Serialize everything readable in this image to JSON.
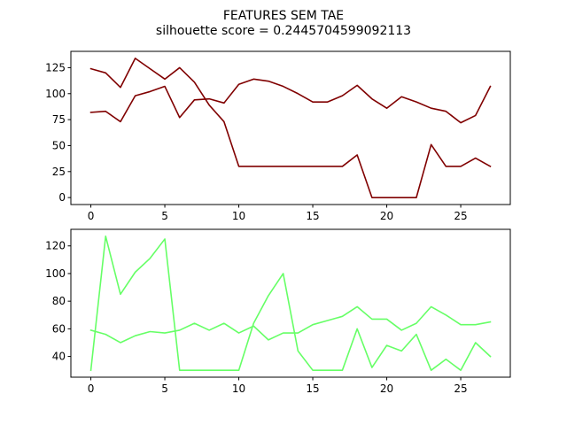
{
  "figure": {
    "title_line1": "FEATURES SEM TAE",
    "title_line2": "silhouette score = 0.2445704599092113"
  },
  "chart_data": [
    {
      "type": "line",
      "color": "#800000",
      "xlim": [
        -1.35,
        28.35
      ],
      "ylim": [
        -6.7,
        140.7
      ],
      "x_ticks": [
        0,
        5,
        10,
        15,
        20,
        25
      ],
      "y_ticks": [
        0,
        25,
        50,
        75,
        100,
        125
      ],
      "grid": false,
      "x": [
        0,
        1,
        2,
        3,
        4,
        5,
        6,
        7,
        8,
        9,
        10,
        11,
        12,
        13,
        14,
        15,
        16,
        17,
        18,
        19,
        20,
        21,
        22,
        23,
        24,
        25,
        26,
        27
      ],
      "series": [
        {
          "values": [
            124,
            120,
            106,
            134,
            124,
            114,
            125,
            111,
            89,
            73,
            30,
            30,
            30,
            30,
            30,
            30,
            30,
            30,
            41,
            0,
            0,
            0,
            0,
            51,
            30,
            30,
            38,
            30
          ]
        },
        {
          "values": [
            82,
            83,
            73,
            98,
            102,
            107,
            77,
            94,
            95,
            91,
            109,
            114,
            112,
            107,
            100,
            92,
            92,
            98,
            108,
            95,
            86,
            97,
            92,
            86,
            83,
            72,
            79,
            107
          ]
        }
      ]
    },
    {
      "type": "line",
      "color": "#66ff66",
      "xlim": [
        -1.35,
        28.35
      ],
      "ylim": [
        25,
        132
      ],
      "x_ticks": [
        0,
        5,
        10,
        15,
        20,
        25
      ],
      "y_ticks": [
        40,
        60,
        80,
        100,
        120
      ],
      "grid": false,
      "x": [
        0,
        1,
        2,
        3,
        4,
        5,
        6,
        7,
        8,
        9,
        10,
        11,
        12,
        13,
        14,
        15,
        16,
        17,
        18,
        19,
        20,
        21,
        22,
        23,
        24,
        25,
        26,
        27
      ],
      "series": [
        {
          "values": [
            59,
            56,
            50,
            55,
            58,
            57,
            59,
            64,
            59,
            64,
            57,
            62,
            52,
            57,
            57,
            63,
            66,
            69,
            76,
            67,
            67,
            59,
            64,
            76,
            70,
            63,
            63,
            65
          ]
        },
        {
          "values": [
            30,
            127,
            85,
            101,
            111,
            125,
            30,
            30,
            30,
            30,
            30,
            64,
            84,
            100,
            44,
            30,
            30,
            30,
            60,
            32,
            48,
            44,
            56,
            30,
            38,
            30,
            50,
            40
          ]
        }
      ]
    }
  ]
}
